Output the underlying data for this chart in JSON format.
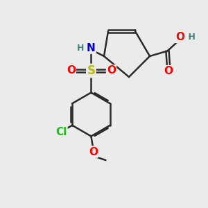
{
  "bg_color": "#ebebeb",
  "bond_color": "#2a2a2a",
  "bond_width": 1.8,
  "atom_colors": {
    "O": "#ff0000",
    "N": "#0000cc",
    "S": "#bbbb00",
    "Cl": "#22bb22",
    "H": "#4a8080",
    "C": "#2a2a2a"
  },
  "font_size_atom": 11,
  "font_size_small": 9
}
